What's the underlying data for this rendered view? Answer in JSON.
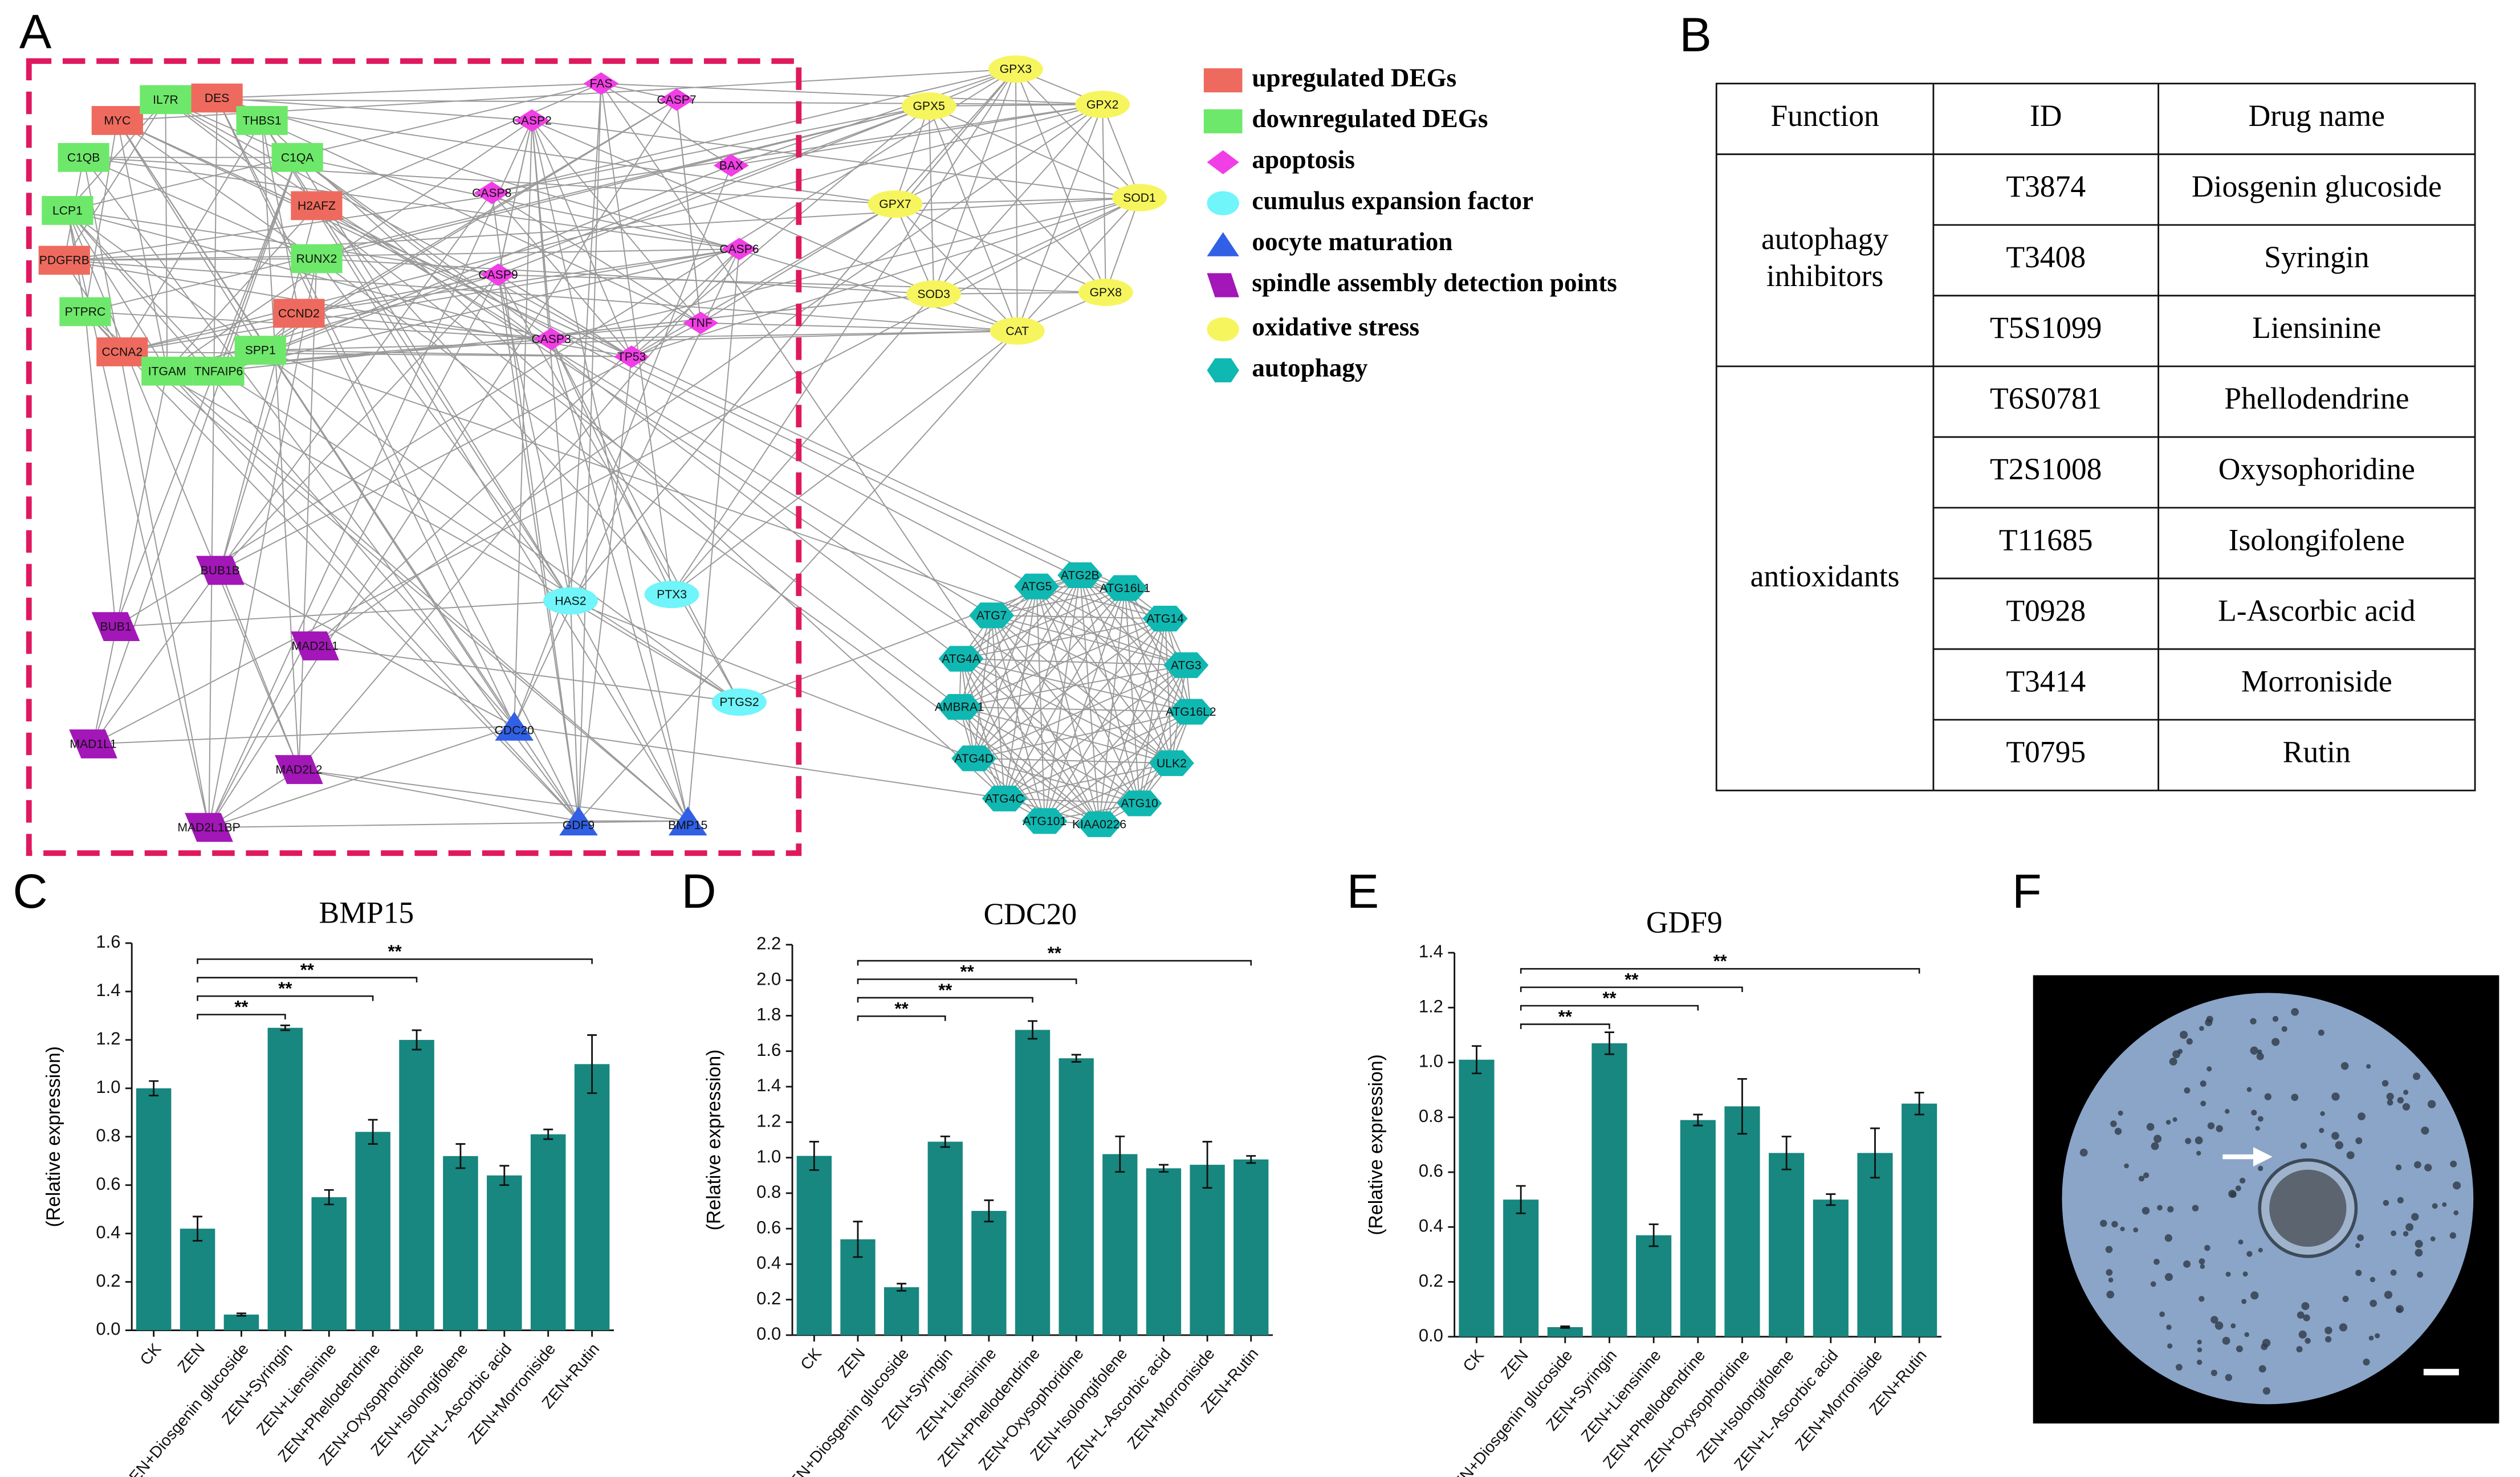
{
  "panels": [
    "A",
    "B",
    "C",
    "D",
    "E",
    "F"
  ],
  "network": {
    "legend": [
      {
        "label": "upregulated  DEGs",
        "color": "#ef6a5e",
        "shape": "rect",
        "nodes": [
          "MYC",
          "DES",
          "H2AFZ",
          "PDGFRB",
          "CCND2",
          "CCNA2"
        ]
      },
      {
        "label": "downregulated DEGs",
        "color": "#6ee86a",
        "shape": "rect",
        "nodes": [
          "IL7R",
          "THBS1",
          "C1QB",
          "C1QA",
          "LCP1",
          "RUNX2",
          "PTPRC",
          "SPP1",
          "ITGAM",
          "TNFAIP6"
        ]
      },
      {
        "label": "apoptosis",
        "color": "#f23ee6",
        "shape": "diamond",
        "nodes": [
          "FAS",
          "CASP7",
          "CASP2",
          "BAX",
          "CASP8",
          "CASP6",
          "CASP9",
          "TNF",
          "CASP3",
          "TP53"
        ]
      },
      {
        "label": "cumulus expansion factor",
        "color": "#6ff5fa",
        "shape": "ellipse",
        "nodes": [
          "HAS2",
          "PTX3",
          "PTGS2"
        ]
      },
      {
        "label": "oocyte maturation",
        "color": "#3160e6",
        "shape": "triangle",
        "nodes": [
          "CDC20",
          "GDF9",
          "BMP15"
        ]
      },
      {
        "label": "spindle assembly detection points",
        "color": "#a316b8",
        "shape": "parallelogram",
        "nodes": [
          "BUB1B",
          "BUB1",
          "MAD2L1",
          "MAD1L1",
          "MAD2L2",
          "MAD2L1BP"
        ]
      },
      {
        "label": "oxidative stress",
        "color": "#f6f55e",
        "shape": "ellipse",
        "nodes": [
          "GPX3",
          "GPX5",
          "GPX2",
          "GPX7",
          "SOD1",
          "SOD3",
          "GPX8",
          "CAT"
        ]
      },
      {
        "label": "autophagy",
        "color": "#10b8b2",
        "shape": "hexagon",
        "nodes": [
          "ATG5",
          "ATG2B",
          "ATG16L1",
          "ATG7",
          "ATG14",
          "ATG4A",
          "ATG3",
          "AMBRA1",
          "ATG16L2",
          "ATG4D",
          "ULK2",
          "ATG4C",
          "ATG10",
          "ATG101",
          "KIAA0226"
        ]
      }
    ]
  },
  "table": {
    "header": [
      "Function",
      "ID",
      "Drug name"
    ],
    "groups": [
      {
        "function": "autophagy inhibitors",
        "rows": [
          [
            "T3874",
            "Diosgenin glucoside"
          ],
          [
            "T3408",
            "Syringin"
          ],
          [
            "T5S1099",
            "Liensinine"
          ]
        ]
      },
      {
        "function": "antioxidants",
        "rows": [
          [
            "T6S0781",
            "Phellodendrine"
          ],
          [
            "T2S1008",
            "Oxysophoridine"
          ],
          [
            "T11685",
            "Isolongifolene"
          ],
          [
            "T0928",
            "L-Ascorbic acid"
          ],
          [
            "T3414",
            "Morroniside"
          ],
          [
            "T0795",
            "Rutin"
          ]
        ]
      }
    ]
  },
  "chart_data": [
    {
      "type": "bar",
      "title": "BMP15",
      "y_label": "(Relative expression)",
      "color": "#17877f",
      "categories": [
        "CK",
        "ZEN",
        "ZEN+Diosgenin glucoside",
        "ZEN+Syringin",
        "ZEN+Liensinine",
        "ZEN+Phellodendrine",
        "ZEN+Oxysophoridine",
        "ZEN+Isolongifolene",
        "ZEN+L-Ascorbic acid",
        "ZEN+Morroniside",
        "ZEN+Rutin"
      ],
      "values": [
        1.0,
        0.42,
        0.065,
        1.25,
        0.55,
        0.82,
        1.2,
        0.72,
        0.64,
        0.81,
        1.1
      ],
      "errors": [
        0.03,
        0.05,
        0.005,
        0.01,
        0.03,
        0.05,
        0.04,
        0.05,
        0.04,
        0.02,
        0.12
      ],
      "ylim": [
        0,
        1.6
      ],
      "yticks": [
        {
          "value": 0,
          "label": "0.0"
        },
        0.2,
        0.4,
        0.6,
        0.8,
        {
          "value": 1,
          "label": "1.0"
        },
        1.2,
        1.4,
        1.6
      ],
      "comparisons": [
        {
          "groups": [
            "ZEN",
            "ZEN+Syringin"
          ],
          "label": "**"
        },
        {
          "groups": [
            "ZEN",
            "ZEN+Phellodendrine"
          ],
          "label": "**"
        },
        {
          "groups": [
            "ZEN",
            "ZEN+Oxysophoridine"
          ],
          "label": "**"
        },
        {
          "groups": [
            "ZEN",
            "ZEN+Rutin"
          ],
          "label": "**"
        }
      ]
    },
    {
      "type": "bar",
      "title": "CDC20",
      "y_label": "(Relative expression)",
      "color": "#17877f",
      "categories": [
        "CK",
        "ZEN",
        "ZEN+Diosgenin glucoside",
        "ZEN+Syringin",
        "ZEN+Liensinine",
        "ZEN+Phellodendrine",
        "ZEN+Oxysophoridine",
        "ZEN+Isolongifolene",
        "ZEN+L-Ascorbic acid",
        "ZEN+Morroniside",
        "ZEN+Rutin"
      ],
      "values": [
        1.01,
        0.54,
        0.27,
        1.09,
        0.7,
        1.72,
        1.56,
        1.02,
        0.94,
        0.96,
        0.99
      ],
      "errors": [
        0.08,
        0.1,
        0.02,
        0.03,
        0.06,
        0.05,
        0.02,
        0.1,
        0.02,
        0.13,
        0.02
      ],
      "ylim": [
        0,
        2.2
      ],
      "yticks": [
        {
          "value": 0,
          "label": "0.0"
        },
        0.2,
        0.4,
        0.6,
        0.8,
        {
          "value": 1,
          "label": "1.0"
        },
        1.2,
        1.4,
        1.6,
        1.8,
        {
          "value": 2,
          "label": "2.0"
        },
        2.2
      ],
      "comparisons": [
        {
          "groups": [
            "ZEN",
            "ZEN+Syringin"
          ],
          "label": "**"
        },
        {
          "groups": [
            "ZEN",
            "ZEN+Phellodendrine"
          ],
          "label": "**"
        },
        {
          "groups": [
            "ZEN",
            "ZEN+Oxysophoridine"
          ],
          "label": "**"
        },
        {
          "groups": [
            "ZEN",
            "ZEN+Rutin"
          ],
          "label": "**"
        }
      ]
    },
    {
      "type": "bar",
      "title": "GDF9",
      "y_label": "(Relative expression)",
      "color": "#17877f",
      "categories": [
        "CK",
        "ZEN",
        "ZEN+Diosgenin glucoside",
        "ZEN+Syringin",
        "ZEN+Liensinine",
        "ZEN+Phellodendrine",
        "ZEN+Oxysophoridine",
        "ZEN+Isolongifolene",
        "ZEN+L-Ascorbic acid",
        "ZEN+Morroniside",
        "ZEN+Rutin"
      ],
      "values": [
        1.01,
        0.5,
        0.035,
        1.07,
        0.37,
        0.79,
        0.84,
        0.67,
        0.5,
        0.67,
        0.85
      ],
      "errors": [
        0.05,
        0.05,
        0.003,
        0.04,
        0.04,
        0.02,
        0.1,
        0.06,
        0.02,
        0.09,
        0.04
      ],
      "ylim": [
        0,
        1.4
      ],
      "yticks": [
        {
          "value": 0,
          "label": "0.0"
        },
        0.2,
        0.4,
        0.6,
        0.8,
        {
          "value": 1,
          "label": "1.0"
        },
        1.2,
        1.4
      ],
      "comparisons": [
        {
          "groups": [
            "ZEN",
            "ZEN+Syringin"
          ],
          "label": "**"
        },
        {
          "groups": [
            "ZEN",
            "ZEN+Phellodendrine"
          ],
          "label": "**"
        },
        {
          "groups": [
            "ZEN",
            "ZEN+Oxysophoridine"
          ],
          "label": "**"
        },
        {
          "groups": [
            "ZEN",
            "ZEN+Rutin"
          ],
          "label": "**"
        }
      ]
    }
  ]
}
